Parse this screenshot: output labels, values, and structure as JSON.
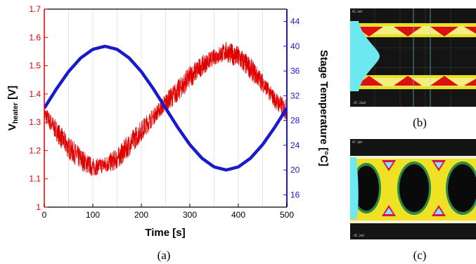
{
  "chart_data": {
    "type": "line",
    "xlabel": "Time [s]",
    "ylabel_left_main": "V",
    "ylabel_left_sub": "heater",
    "ylabel_left_unit": " [V]",
    "ylabel_right": "Stage Temperature [°C]",
    "xlim": [
      0,
      500
    ],
    "ylim_left": [
      1.0,
      1.7
    ],
    "ylim_right": [
      14,
      46
    ],
    "x_ticks": [
      "0",
      "100",
      "200",
      "300",
      "400",
      "500"
    ],
    "y_left_ticks": [
      "1",
      "1.1",
      "1.2",
      "1.3",
      "1.4",
      "1.5",
      "1.6",
      "1.7"
    ],
    "y_right_ticks": [
      "16",
      "20",
      "24",
      "28",
      "32",
      "36",
      "40",
      "44"
    ],
    "grid": "vertical",
    "series": [
      {
        "axis": "left",
        "color": "#e00000",
        "x": [
          0,
          25,
          50,
          75,
          100,
          125,
          150,
          175,
          200,
          225,
          250,
          275,
          300,
          325,
          350,
          375,
          400,
          425,
          450,
          475,
          500
        ],
        "values": [
          1.33,
          1.27,
          1.21,
          1.17,
          1.14,
          1.15,
          1.17,
          1.22,
          1.27,
          1.32,
          1.37,
          1.41,
          1.46,
          1.5,
          1.53,
          1.55,
          1.53,
          1.49,
          1.44,
          1.38,
          1.34
        ]
      },
      {
        "axis": "right",
        "color": "#1a1acc",
        "x": [
          0,
          25,
          50,
          75,
          100,
          125,
          150,
          175,
          200,
          225,
          250,
          275,
          300,
          325,
          350,
          375,
          400,
          425,
          450,
          475,
          500
        ],
        "values": [
          30,
          33.1,
          35.9,
          38.1,
          39.5,
          40,
          39.5,
          38.1,
          35.9,
          33.1,
          30,
          26.9,
          24.1,
          21.9,
          20.5,
          20,
          20.5,
          21.9,
          24.1,
          26.9,
          30
        ]
      }
    ]
  },
  "panels": {
    "a_caption": "(a)",
    "b_caption": "(b)",
    "c_caption": "(c)"
  },
  "scope_b": {
    "top_left": "92.2mV",
    "bottom_left": "-87.33mV"
  },
  "scope_c": {
    "top_left": "97.3mV",
    "bottom_left": "-95.2mV"
  }
}
